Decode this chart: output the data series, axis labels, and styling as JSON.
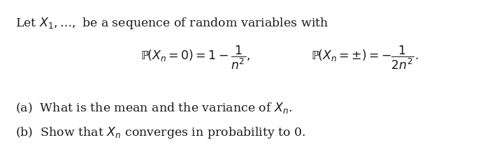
{
  "line1": "Let $X_1, \\ldots,$ be a sequence of random variables with",
  "eq1": "$\\mathbb{P}\\left(X_n = 0\\right) = 1 - \\dfrac{1}{n^2},$",
  "eq2": "$\\mathbb{P}\\left(X_n = \\pm\\right) = -\\dfrac{1}{2n^2}.$",
  "part_a": "(a)  What is the mean and the variance of $X_n$.",
  "part_b": "(b)  Show that $X_n$ converges in probability to 0.",
  "bg_color": "#ffffff",
  "text_color": "#1c1c1c",
  "fontsize_main": 12.5,
  "fontsize_eq": 12.5,
  "fig_width": 6.74,
  "fig_height": 1.83
}
